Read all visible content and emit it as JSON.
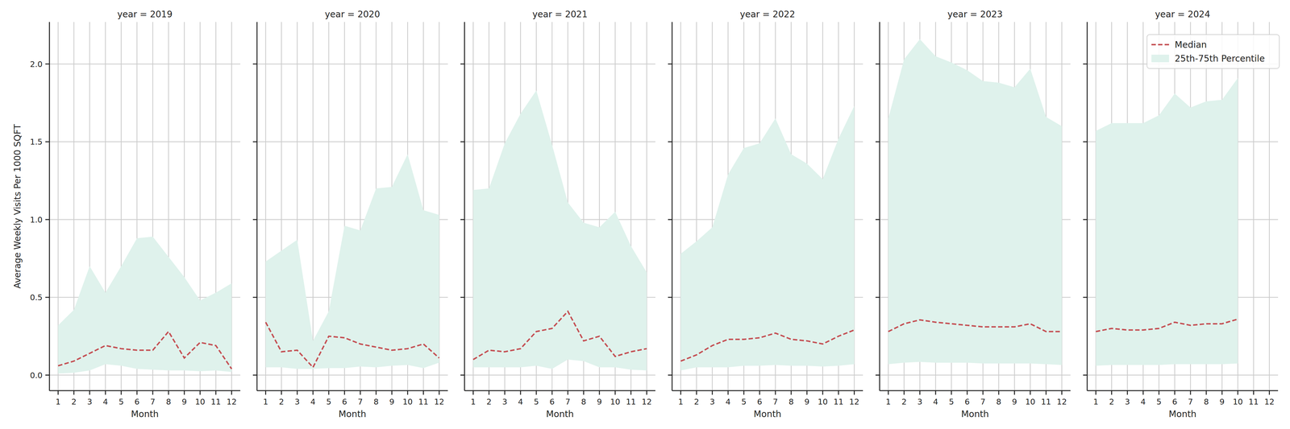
{
  "chart_data": [
    {
      "type": "line",
      "title": "year = 2019",
      "xlabel": "Month",
      "ylabel": "Average Weekly Visits Per 1000 SQFT",
      "x": [
        1,
        2,
        3,
        4,
        5,
        6,
        7,
        8,
        9,
        10,
        11,
        12
      ],
      "xlim": [
        0.45,
        12.55
      ],
      "ylim": [
        -0.1,
        2.27
      ],
      "xticks": [
        1,
        2,
        3,
        4,
        5,
        6,
        7,
        8,
        9,
        10,
        11,
        12
      ],
      "yticks": [
        {
          "value": 0,
          "label": "0.0"
        },
        {
          "value": 0.5,
          "label": "0.5"
        },
        {
          "value": 1,
          "label": "1.0"
        },
        {
          "value": 1.5,
          "label": "1.5"
        },
        {
          "value": 2,
          "label": "2.0"
        }
      ],
      "grid": true,
      "series": [
        {
          "name": "25th-75th Percentile",
          "type": "area",
          "color": "#dff2ec",
          "low": [
            0.01,
            0.015,
            0.03,
            0.07,
            0.06,
            0.04,
            0.035,
            0.03,
            0.03,
            0.025,
            0.03,
            0.02
          ],
          "high": [
            0.32,
            0.42,
            0.7,
            0.53,
            0.7,
            0.88,
            0.89,
            0.76,
            0.63,
            0.48,
            0.53,
            0.59
          ]
        },
        {
          "name": "Median",
          "type": "line",
          "color": "#c44e52",
          "line_style": "dashed",
          "values": [
            0.06,
            0.09,
            0.14,
            0.19,
            0.17,
            0.16,
            0.16,
            0.28,
            0.11,
            0.21,
            0.19,
            0.04
          ]
        }
      ]
    },
    {
      "type": "line",
      "title": "year = 2020",
      "xlabel": "Month",
      "tick_labels": "x",
      "x": [
        1,
        2,
        3,
        4,
        5,
        6,
        7,
        8,
        9,
        10,
        11,
        12
      ],
      "xlim": [
        0.45,
        12.55
      ],
      "ylim": [
        -0.1,
        2.27
      ],
      "xticks": [
        1,
        2,
        3,
        4,
        5,
        6,
        7,
        8,
        9,
        10,
        11,
        12
      ],
      "yticks": [
        {
          "value": 0,
          "label": "0.0"
        },
        {
          "value": 0.5,
          "label": "0.5"
        },
        {
          "value": 1,
          "label": "1.0"
        },
        {
          "value": 1.5,
          "label": "1.5"
        },
        {
          "value": 2,
          "label": "2.0"
        }
      ],
      "grid": true,
      "series": [
        {
          "name": "25th-75th Percentile",
          "type": "area",
          "color": "#dff2ec",
          "low": [
            0.05,
            0.05,
            0.04,
            0.04,
            0.045,
            0.045,
            0.055,
            0.05,
            0.06,
            0.065,
            0.045,
            0.08
          ],
          "high": [
            0.73,
            0.8,
            0.87,
            0.22,
            0.41,
            0.96,
            0.93,
            1.2,
            1.21,
            1.42,
            1.06,
            1.03
          ]
        },
        {
          "name": "Median",
          "type": "line",
          "color": "#c44e52",
          "line_style": "dashed",
          "values": [
            0.34,
            0.15,
            0.16,
            0.05,
            0.25,
            0.24,
            0.2,
            0.18,
            0.16,
            0.17,
            0.2,
            0.11
          ]
        }
      ]
    },
    {
      "type": "line",
      "title": "year = 2021",
      "xlabel": "Month",
      "tick_labels": "x",
      "x": [
        1,
        2,
        3,
        4,
        5,
        6,
        7,
        8,
        9,
        10,
        11,
        12
      ],
      "xlim": [
        0.45,
        12.55
      ],
      "ylim": [
        -0.1,
        2.27
      ],
      "xticks": [
        1,
        2,
        3,
        4,
        5,
        6,
        7,
        8,
        9,
        10,
        11,
        12
      ],
      "yticks": [
        {
          "value": 0,
          "label": "0.0"
        },
        {
          "value": 0.5,
          "label": "0.5"
        },
        {
          "value": 1,
          "label": "1.0"
        },
        {
          "value": 1.5,
          "label": "1.5"
        },
        {
          "value": 2,
          "label": "2.0"
        }
      ],
      "grid": true,
      "series": [
        {
          "name": "25th-75th Percentile",
          "type": "area",
          "color": "#dff2ec",
          "low": [
            0.05,
            0.05,
            0.05,
            0.05,
            0.06,
            0.04,
            0.1,
            0.09,
            0.05,
            0.05,
            0.035,
            0.03
          ],
          "high": [
            1.19,
            1.2,
            1.49,
            1.68,
            1.83,
            1.48,
            1.11,
            0.98,
            0.95,
            1.05,
            0.83,
            0.66
          ]
        },
        {
          "name": "Median",
          "type": "line",
          "color": "#c44e52",
          "line_style": "dashed",
          "values": [
            0.1,
            0.16,
            0.15,
            0.17,
            0.28,
            0.3,
            0.41,
            0.22,
            0.25,
            0.12,
            0.15,
            0.17
          ]
        }
      ]
    },
    {
      "type": "line",
      "title": "year = 2022",
      "xlabel": "Month",
      "tick_labels": "x",
      "x": [
        1,
        2,
        3,
        4,
        5,
        6,
        7,
        8,
        9,
        10,
        11,
        12
      ],
      "xlim": [
        0.45,
        12.55
      ],
      "ylim": [
        -0.1,
        2.27
      ],
      "xticks": [
        1,
        2,
        3,
        4,
        5,
        6,
        7,
        8,
        9,
        10,
        11,
        12
      ],
      "yticks": [
        {
          "value": 0,
          "label": "0.0"
        },
        {
          "value": 0.5,
          "label": "0.5"
        },
        {
          "value": 1,
          "label": "1.0"
        },
        {
          "value": 1.5,
          "label": "1.5"
        },
        {
          "value": 2,
          "label": "2.0"
        }
      ],
      "grid": true,
      "series": [
        {
          "name": "25th-75th Percentile",
          "type": "area",
          "color": "#dff2ec",
          "low": [
            0.03,
            0.05,
            0.05,
            0.05,
            0.06,
            0.06,
            0.065,
            0.06,
            0.06,
            0.055,
            0.06,
            0.07
          ],
          "high": [
            0.78,
            0.86,
            0.95,
            1.29,
            1.46,
            1.49,
            1.65,
            1.42,
            1.36,
            1.26,
            1.52,
            1.73
          ]
        },
        {
          "name": "Median",
          "type": "line",
          "color": "#c44e52",
          "line_style": "dashed",
          "values": [
            0.09,
            0.13,
            0.19,
            0.23,
            0.23,
            0.24,
            0.27,
            0.23,
            0.22,
            0.2,
            0.25,
            0.29
          ]
        }
      ]
    },
    {
      "type": "line",
      "title": "year = 2023",
      "xlabel": "Month",
      "tick_labels": "x",
      "x": [
        1,
        2,
        3,
        4,
        5,
        6,
        7,
        8,
        9,
        10,
        11,
        12
      ],
      "xlim": [
        0.45,
        12.55
      ],
      "ylim": [
        -0.1,
        2.27
      ],
      "xticks": [
        1,
        2,
        3,
        4,
        5,
        6,
        7,
        8,
        9,
        10,
        11,
        12
      ],
      "yticks": [
        {
          "value": 0,
          "label": "0.0"
        },
        {
          "value": 0.5,
          "label": "0.5"
        },
        {
          "value": 1,
          "label": "1.0"
        },
        {
          "value": 1.5,
          "label": "1.5"
        },
        {
          "value": 2,
          "label": "2.0"
        }
      ],
      "grid": true,
      "series": [
        {
          "name": "25th-75th Percentile",
          "type": "area",
          "color": "#dff2ec",
          "low": [
            0.07,
            0.08,
            0.085,
            0.08,
            0.08,
            0.08,
            0.075,
            0.075,
            0.075,
            0.075,
            0.07,
            0.065
          ],
          "high": [
            1.65,
            2.03,
            2.16,
            2.05,
            2.01,
            1.96,
            1.89,
            1.88,
            1.85,
            1.97,
            1.66,
            1.6
          ]
        },
        {
          "name": "Median",
          "type": "line",
          "color": "#c44e52",
          "line_style": "dashed",
          "values": [
            0.28,
            0.33,
            0.355,
            0.34,
            0.33,
            0.32,
            0.31,
            0.31,
            0.31,
            0.33,
            0.28,
            0.28
          ]
        }
      ]
    },
    {
      "type": "line",
      "title": "year = 2024",
      "xlabel": "Month",
      "tick_labels": "x",
      "legend": "upper right",
      "x": [
        1,
        2,
        3,
        4,
        5,
        6,
        7,
        8,
        9,
        10
      ],
      "xlim": [
        0.45,
        12.55
      ],
      "ylim": [
        -0.1,
        2.27
      ],
      "xticks": [
        1,
        2,
        3,
        4,
        5,
        6,
        7,
        8,
        9,
        10,
        11,
        12
      ],
      "yticks": [
        {
          "value": 0,
          "label": "0.0"
        },
        {
          "value": 0.5,
          "label": "0.5"
        },
        {
          "value": 1,
          "label": "1.0"
        },
        {
          "value": 1.5,
          "label": "1.5"
        },
        {
          "value": 2,
          "label": "2.0"
        }
      ],
      "grid": true,
      "series": [
        {
          "name": "25th-75th Percentile",
          "type": "area",
          "color": "#dff2ec",
          "low": [
            0.06,
            0.065,
            0.065,
            0.065,
            0.065,
            0.07,
            0.07,
            0.07,
            0.07,
            0.075
          ],
          "high": [
            1.57,
            1.62,
            1.62,
            1.62,
            1.67,
            1.81,
            1.72,
            1.76,
            1.77,
            1.91
          ]
        },
        {
          "name": "Median",
          "type": "line",
          "color": "#c44e52",
          "line_style": "dashed",
          "values": [
            0.28,
            0.3,
            0.29,
            0.29,
            0.3,
            0.34,
            0.32,
            0.33,
            0.33,
            0.36
          ]
        }
      ]
    }
  ]
}
